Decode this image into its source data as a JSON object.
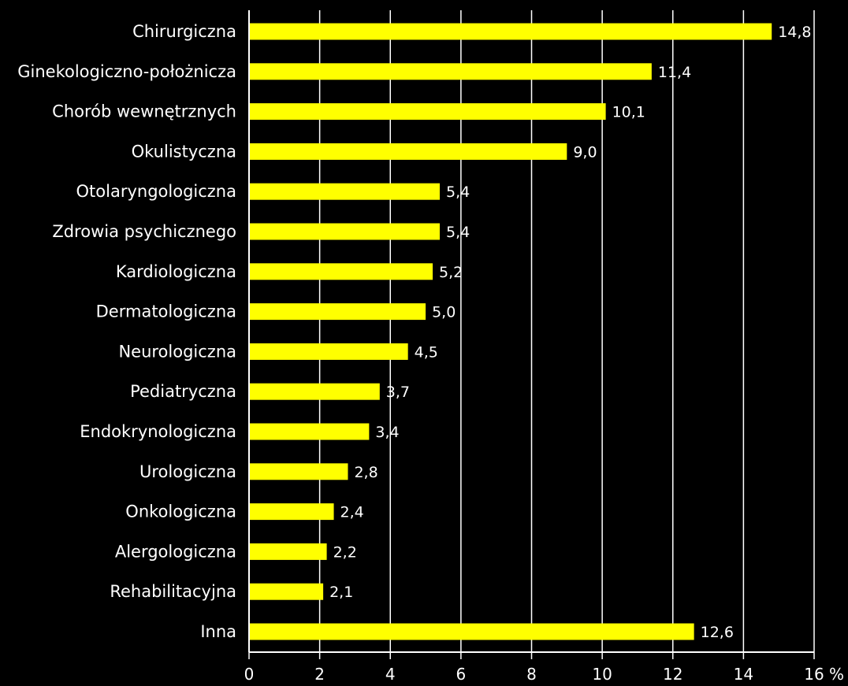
{
  "chart_data": {
    "type": "bar",
    "orientation": "horizontal",
    "categories": [
      "Chirurgiczna",
      "Ginekologiczno-położnicza",
      "Chorób wewnętrznych",
      "Okulistyczna",
      "Otolaryngologiczna",
      "Zdrowia psychicznego",
      "Kardiologiczna",
      "Dermatologiczna",
      "Neurologiczna",
      "Pediatryczna",
      "Endokrynologiczna",
      "Urologiczna",
      "Onkologiczna",
      "Alergologiczna",
      "Rehabilitacyjna",
      "Inna"
    ],
    "values": [
      14.8,
      11.4,
      10.1,
      9.0,
      5.4,
      5.4,
      5.2,
      5.0,
      4.5,
      3.7,
      3.4,
      2.8,
      2.4,
      2.2,
      2.1,
      12.6
    ],
    "value_labels": [
      "14,8",
      "11,4",
      "10,1",
      "9,0",
      "5,4",
      "5,4",
      "5,2",
      "5,0",
      "4,5",
      "3,7",
      "3,4",
      "2,8",
      "2,4",
      "2,2",
      "2,1",
      "12,6"
    ],
    "x_ticks": [
      "0",
      "2",
      "4",
      "6",
      "8",
      "10",
      "12",
      "14",
      "16"
    ],
    "x_unit": "%",
    "xlim": [
      0,
      16
    ],
    "grid": true,
    "bar_color": "#ffff00",
    "grid_color": "#ffffff",
    "background_color": "#000000",
    "text_color": "#ffffff"
  }
}
